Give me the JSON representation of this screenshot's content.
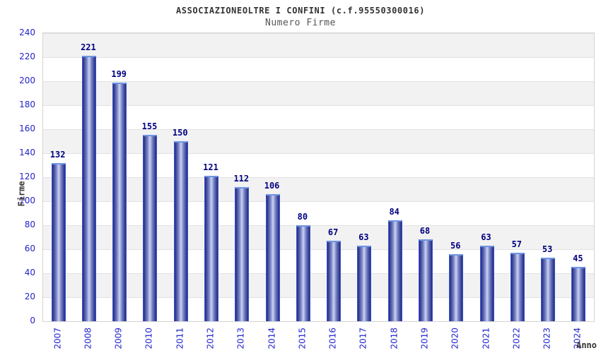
{
  "chart_data": {
    "type": "bar",
    "title": "ASSOCIAZIONEOLTRE I CONFINI (c.f.95550300016)",
    "subtitle": "Numero Firme",
    "xlabel": "Anno",
    "ylabel": "Firme",
    "categories": [
      "2007",
      "2008",
      "2009",
      "2010",
      "2011",
      "2012",
      "2013",
      "2014",
      "2015",
      "2016",
      "2017",
      "2018",
      "2019",
      "2020",
      "2021",
      "2022",
      "2023",
      "2024"
    ],
    "values": [
      132,
      221,
      199,
      155,
      150,
      121,
      112,
      106,
      80,
      67,
      63,
      84,
      68,
      56,
      63,
      57,
      53,
      45
    ],
    "ylim": [
      0,
      240
    ],
    "ytick_step": 20,
    "grid": "horizontal-bands",
    "legend": "none",
    "value_labels_shown": true,
    "colors": {
      "tick_label": "#2222cc",
      "value_label": "#000080",
      "title": "#333333",
      "subtitle": "#555555",
      "axis_title": "#333333",
      "band_gray": "#f2f2f2",
      "grid_line": "#e2e2e2",
      "plot_border": "#d4d4d4",
      "bar_dark": "#23297e",
      "bar_mid": "#7380c4",
      "bar_light": "#ccd2f2",
      "bar_outline": "#3a55d4",
      "bar_top_cap": "#6f95e2"
    }
  }
}
